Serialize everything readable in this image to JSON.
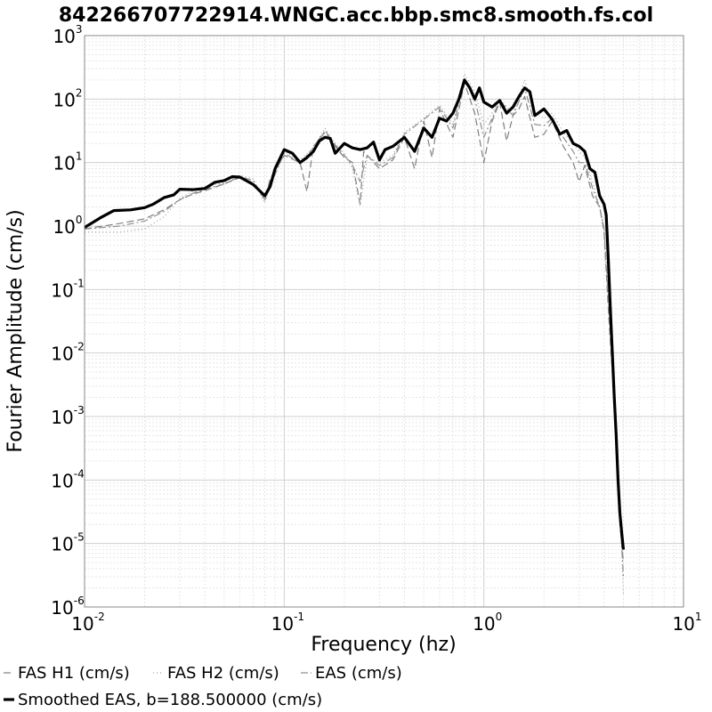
{
  "chart_data": {
    "type": "line",
    "title": "842266707722914.WNGC.acc.bbp.smc8.smooth.fs.col",
    "xlabel": "Frequency (hz)",
    "ylabel": "Fourier Amplitude (cm/s)",
    "x_scale": "log",
    "y_scale": "log",
    "xlim": [
      0.01,
      10
    ],
    "ylim": [
      1e-06,
      1000
    ],
    "grid": true,
    "legend_position": "bottom",
    "x_ticks": [
      {
        "base": "10",
        "exp": "-2",
        "value": 0.01
      },
      {
        "base": "10",
        "exp": "-1",
        "value": 0.1
      },
      {
        "base": "10",
        "exp": "0",
        "value": 1
      },
      {
        "base": "10",
        "exp": "1",
        "value": 10
      }
    ],
    "y_ticks": [
      {
        "base": "10",
        "exp": "-6",
        "value": 1e-06
      },
      {
        "base": "10",
        "exp": "-5",
        "value": 1e-05
      },
      {
        "base": "10",
        "exp": "-4",
        "value": 0.0001
      },
      {
        "base": "10",
        "exp": "-3",
        "value": 0.001
      },
      {
        "base": "10",
        "exp": "-2",
        "value": 0.01
      },
      {
        "base": "10",
        "exp": "-1",
        "value": 0.1
      },
      {
        "base": "10",
        "exp": "0",
        "value": 1
      },
      {
        "base": "10",
        "exp": "1",
        "value": 10
      },
      {
        "base": "10",
        "exp": "2",
        "value": 100
      },
      {
        "base": "10",
        "exp": "3",
        "value": 1000
      }
    ],
    "series": [
      {
        "name": "FAS H1 (cm/s)",
        "color": "#808080",
        "style": "dashed",
        "points": [
          [
            0.01,
            0.9
          ],
          [
            0.015,
            1.1
          ],
          [
            0.02,
            1.3
          ],
          [
            0.025,
            1.8
          ],
          [
            0.03,
            2.6
          ],
          [
            0.035,
            3.2
          ],
          [
            0.04,
            3.6
          ],
          [
            0.05,
            4.6
          ],
          [
            0.06,
            5.8
          ],
          [
            0.07,
            4.8
          ],
          [
            0.08,
            2.6
          ],
          [
            0.085,
            5.5
          ],
          [
            0.1,
            13
          ],
          [
            0.12,
            10
          ],
          [
            0.13,
            3.5
          ],
          [
            0.14,
            18
          ],
          [
            0.16,
            30
          ],
          [
            0.18,
            18
          ],
          [
            0.2,
            12
          ],
          [
            0.22,
            10
          ],
          [
            0.24,
            2.2
          ],
          [
            0.25,
            15
          ],
          [
            0.3,
            8
          ],
          [
            0.35,
            11
          ],
          [
            0.4,
            25
          ],
          [
            0.45,
            8
          ],
          [
            0.5,
            45
          ],
          [
            0.55,
            12
          ],
          [
            0.6,
            70
          ],
          [
            0.7,
            25
          ],
          [
            0.8,
            180
          ],
          [
            0.9,
            60
          ],
          [
            1.0,
            10
          ],
          [
            1.1,
            45
          ],
          [
            1.2,
            90
          ],
          [
            1.3,
            22
          ],
          [
            1.4,
            55
          ],
          [
            1.5,
            70
          ],
          [
            1.6,
            110
          ],
          [
            1.8,
            25
          ],
          [
            2.0,
            28
          ],
          [
            2.2,
            45
          ],
          [
            2.5,
            18
          ],
          [
            2.8,
            10
          ],
          [
            3.0,
            5
          ],
          [
            3.2,
            9
          ],
          [
            3.5,
            3
          ],
          [
            3.8,
            2
          ],
          [
            4.0,
            0.8
          ],
          [
            4.2,
            0.05
          ],
          [
            4.4,
            0.005
          ],
          [
            4.6,
            0.0005
          ],
          [
            4.8,
            2e-05
          ],
          [
            5.0,
            5e-06
          ]
        ]
      },
      {
        "name": "FAS H2 (cm/s)",
        "color": "#a0a0a0",
        "style": "dotted",
        "points": [
          [
            0.01,
            0.8
          ],
          [
            0.015,
            0.8
          ],
          [
            0.02,
            0.9
          ],
          [
            0.025,
            1.4
          ],
          [
            0.03,
            2.7
          ],
          [
            0.035,
            3.6
          ],
          [
            0.04,
            4.2
          ],
          [
            0.05,
            4.8
          ],
          [
            0.06,
            6.3
          ],
          [
            0.07,
            5.5
          ],
          [
            0.08,
            2.3
          ],
          [
            0.09,
            8
          ],
          [
            0.1,
            15
          ],
          [
            0.12,
            11
          ],
          [
            0.14,
            17
          ],
          [
            0.16,
            35
          ],
          [
            0.18,
            20
          ],
          [
            0.2,
            14
          ],
          [
            0.22,
            8
          ],
          [
            0.24,
            2.1
          ],
          [
            0.26,
            12
          ],
          [
            0.3,
            10
          ],
          [
            0.35,
            13
          ],
          [
            0.4,
            30
          ],
          [
            0.5,
            50
          ],
          [
            0.6,
            80
          ],
          [
            0.7,
            40
          ],
          [
            0.8,
            250
          ],
          [
            0.9,
            130
          ],
          [
            1.0,
            40
          ],
          [
            1.1,
            60
          ],
          [
            1.2,
            100
          ],
          [
            1.4,
            60
          ],
          [
            1.6,
            200
          ],
          [
            1.8,
            60
          ],
          [
            2.0,
            50
          ],
          [
            2.2,
            60
          ],
          [
            2.5,
            30
          ],
          [
            2.8,
            20
          ],
          [
            3.0,
            15
          ],
          [
            3.2,
            12
          ],
          [
            3.5,
            5
          ],
          [
            3.8,
            2
          ],
          [
            4.0,
            1
          ],
          [
            4.2,
            0.1
          ],
          [
            4.4,
            0.01
          ],
          [
            4.6,
            0.001
          ],
          [
            4.8,
            5e-05
          ],
          [
            5.0,
            1.5e-06
          ]
        ]
      },
      {
        "name": "EAS (cm/s)",
        "color": "#909090",
        "style": "dashdot",
        "points": [
          [
            0.01,
            0.9
          ],
          [
            0.015,
            1.0
          ],
          [
            0.02,
            1.2
          ],
          [
            0.025,
            1.7
          ],
          [
            0.03,
            2.6
          ],
          [
            0.035,
            3.3
          ],
          [
            0.04,
            3.8
          ],
          [
            0.05,
            4.6
          ],
          [
            0.06,
            6
          ],
          [
            0.07,
            5.2
          ],
          [
            0.08,
            2.6
          ],
          [
            0.09,
            6.5
          ],
          [
            0.1,
            14
          ],
          [
            0.12,
            10
          ],
          [
            0.14,
            17
          ],
          [
            0.16,
            32
          ],
          [
            0.18,
            19
          ],
          [
            0.2,
            13
          ],
          [
            0.22,
            9
          ],
          [
            0.24,
            5
          ],
          [
            0.26,
            13
          ],
          [
            0.3,
            9
          ],
          [
            0.35,
            12
          ],
          [
            0.4,
            28
          ],
          [
            0.5,
            48
          ],
          [
            0.6,
            75
          ],
          [
            0.7,
            35
          ],
          [
            0.8,
            210
          ],
          [
            0.9,
            100
          ],
          [
            1.0,
            25
          ],
          [
            1.1,
            50
          ],
          [
            1.2,
            95
          ],
          [
            1.4,
            55
          ],
          [
            1.6,
            150
          ],
          [
            1.8,
            40
          ],
          [
            2.0,
            38
          ],
          [
            2.2,
            50
          ],
          [
            2.5,
            25
          ],
          [
            2.8,
            15
          ],
          [
            3.0,
            10
          ],
          [
            3.2,
            10
          ],
          [
            3.5,
            4
          ],
          [
            3.8,
            2
          ],
          [
            4.0,
            0.9
          ],
          [
            4.2,
            0.07
          ],
          [
            4.4,
            0.007
          ],
          [
            4.6,
            0.0007
          ],
          [
            4.8,
            3e-05
          ],
          [
            5.0,
            3e-06
          ]
        ]
      },
      {
        "name": "Smoothed EAS, b=188.500000 (cm/s)",
        "color": "#000000",
        "style": "solid-bold",
        "points": [
          [
            0.01,
            0.95
          ],
          [
            0.012,
            1.35
          ],
          [
            0.014,
            1.75
          ],
          [
            0.017,
            1.8
          ],
          [
            0.02,
            1.95
          ],
          [
            0.022,
            2.2
          ],
          [
            0.025,
            2.8
          ],
          [
            0.028,
            3.1
          ],
          [
            0.03,
            3.8
          ],
          [
            0.035,
            3.75
          ],
          [
            0.04,
            3.9
          ],
          [
            0.045,
            4.9
          ],
          [
            0.05,
            5.2
          ],
          [
            0.055,
            6.0
          ],
          [
            0.06,
            5.9
          ],
          [
            0.07,
            4.5
          ],
          [
            0.08,
            3.0
          ],
          [
            0.085,
            4.2
          ],
          [
            0.09,
            8
          ],
          [
            0.1,
            16
          ],
          [
            0.11,
            14
          ],
          [
            0.12,
            10
          ],
          [
            0.13,
            12
          ],
          [
            0.14,
            15
          ],
          [
            0.15,
            22
          ],
          [
            0.16,
            25
          ],
          [
            0.17,
            24
          ],
          [
            0.18,
            14
          ],
          [
            0.2,
            20
          ],
          [
            0.22,
            17
          ],
          [
            0.24,
            16
          ],
          [
            0.26,
            17
          ],
          [
            0.28,
            21
          ],
          [
            0.3,
            11
          ],
          [
            0.32,
            16
          ],
          [
            0.35,
            18
          ],
          [
            0.4,
            25
          ],
          [
            0.45,
            15
          ],
          [
            0.5,
            35
          ],
          [
            0.55,
            25
          ],
          [
            0.6,
            50
          ],
          [
            0.65,
            45
          ],
          [
            0.7,
            60
          ],
          [
            0.75,
            100
          ],
          [
            0.8,
            200
          ],
          [
            0.85,
            150
          ],
          [
            0.9,
            100
          ],
          [
            0.95,
            150
          ],
          [
            1.0,
            90
          ],
          [
            1.1,
            75
          ],
          [
            1.2,
            95
          ],
          [
            1.3,
            60
          ],
          [
            1.4,
            75
          ],
          [
            1.5,
            110
          ],
          [
            1.6,
            150
          ],
          [
            1.7,
            130
          ],
          [
            1.8,
            55
          ],
          [
            2.0,
            70
          ],
          [
            2.2,
            48
          ],
          [
            2.4,
            28
          ],
          [
            2.6,
            32
          ],
          [
            2.8,
            20
          ],
          [
            3.0,
            18
          ],
          [
            3.2,
            15
          ],
          [
            3.4,
            8
          ],
          [
            3.6,
            7
          ],
          [
            3.8,
            3
          ],
          [
            4.0,
            2.2
          ],
          [
            4.1,
            1.5
          ],
          [
            4.2,
            0.3
          ],
          [
            4.3,
            0.05
          ],
          [
            4.4,
            0.01
          ],
          [
            4.5,
            0.002
          ],
          [
            4.6,
            0.0005
          ],
          [
            4.7,
            0.0001
          ],
          [
            4.8,
            3e-05
          ],
          [
            4.9,
            1.5e-05
          ],
          [
            5.0,
            8e-06
          ]
        ]
      }
    ]
  }
}
